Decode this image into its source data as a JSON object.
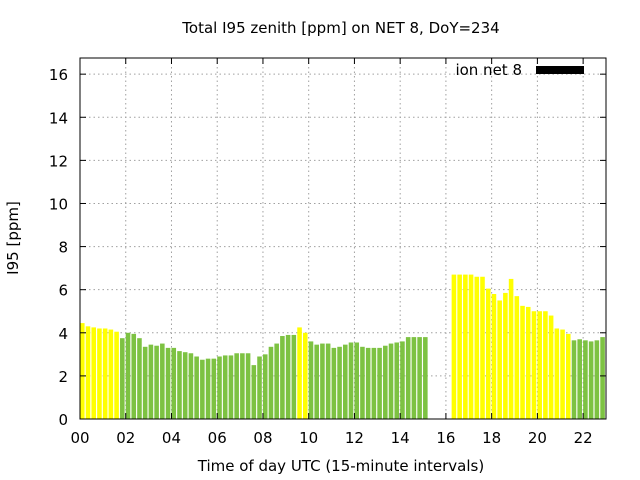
{
  "chart_data": {
    "type": "bar",
    "title": "Total I95 zenith [ppm] on NET 8, DoY=234",
    "xlabel": "Time of day UTC (15-minute intervals)",
    "ylabel": "I95 [ppm]",
    "xlim": [
      0,
      23
    ],
    "ylim": [
      0,
      16.75
    ],
    "x_ticks": [
      "00",
      "02",
      "04",
      "06",
      "08",
      "10",
      "12",
      "14",
      "16",
      "18",
      "20",
      "22"
    ],
    "y_ticks": [
      "0",
      "2",
      "4",
      "6",
      "8",
      "10",
      "12",
      "14",
      "16"
    ],
    "grid": true,
    "legend": {
      "label": "ion net 8",
      "position": "top-right",
      "color": "#000000"
    },
    "colors": {
      "green": "#7dc242",
      "yellow": "#ffff00"
    },
    "interval_hours": 0.25,
    "values": [
      4.45,
      4.3,
      4.25,
      4.2,
      4.2,
      4.15,
      4.05,
      3.75,
      4.0,
      3.95,
      3.75,
      3.35,
      3.45,
      3.4,
      3.5,
      3.3,
      3.3,
      3.15,
      3.1,
      3.05,
      2.9,
      2.75,
      2.8,
      2.8,
      2.9,
      2.95,
      2.95,
      3.05,
      3.05,
      3.05,
      2.5,
      2.9,
      3.0,
      3.35,
      3.5,
      3.85,
      3.9,
      3.9,
      4.25,
      4.0,
      3.6,
      3.45,
      3.5,
      3.5,
      3.3,
      3.35,
      3.45,
      3.55,
      3.55,
      3.35,
      3.3,
      3.3,
      3.3,
      3.4,
      3.5,
      3.55,
      3.6,
      3.8,
      3.8,
      3.8,
      3.8,
      null,
      null,
      null,
      null,
      6.7,
      6.7,
      6.7,
      6.7,
      6.6,
      6.6,
      6.05,
      5.8,
      5.5,
      5.85,
      6.5,
      5.7,
      5.25,
      5.2,
      5.0,
      5.0,
      5.0,
      4.8,
      4.2,
      4.15,
      3.95,
      3.65,
      3.7,
      3.65,
      3.6,
      3.65,
      3.8
    ],
    "bar_colors": [
      "yellow",
      "yellow",
      "yellow",
      "yellow",
      "yellow",
      "yellow",
      "yellow",
      "green",
      "green",
      "green",
      "green",
      "green",
      "green",
      "green",
      "green",
      "green",
      "green",
      "green",
      "green",
      "green",
      "green",
      "green",
      "green",
      "green",
      "green",
      "green",
      "green",
      "green",
      "green",
      "green",
      "green",
      "green",
      "green",
      "green",
      "green",
      "green",
      "green",
      "green",
      "yellow",
      "yellow",
      "green",
      "green",
      "green",
      "green",
      "green",
      "green",
      "green",
      "green",
      "green",
      "green",
      "green",
      "green",
      "green",
      "green",
      "green",
      "green",
      "green",
      "green",
      "green",
      "green",
      "green",
      null,
      null,
      null,
      null,
      "yellow",
      "yellow",
      "yellow",
      "yellow",
      "yellow",
      "yellow",
      "yellow",
      "yellow",
      "yellow",
      "yellow",
      "yellow",
      "yellow",
      "yellow",
      "yellow",
      "yellow",
      "yellow",
      "yellow",
      "yellow",
      "yellow",
      "yellow",
      "yellow",
      "green",
      "green",
      "green",
      "green",
      "green",
      "green"
    ]
  }
}
